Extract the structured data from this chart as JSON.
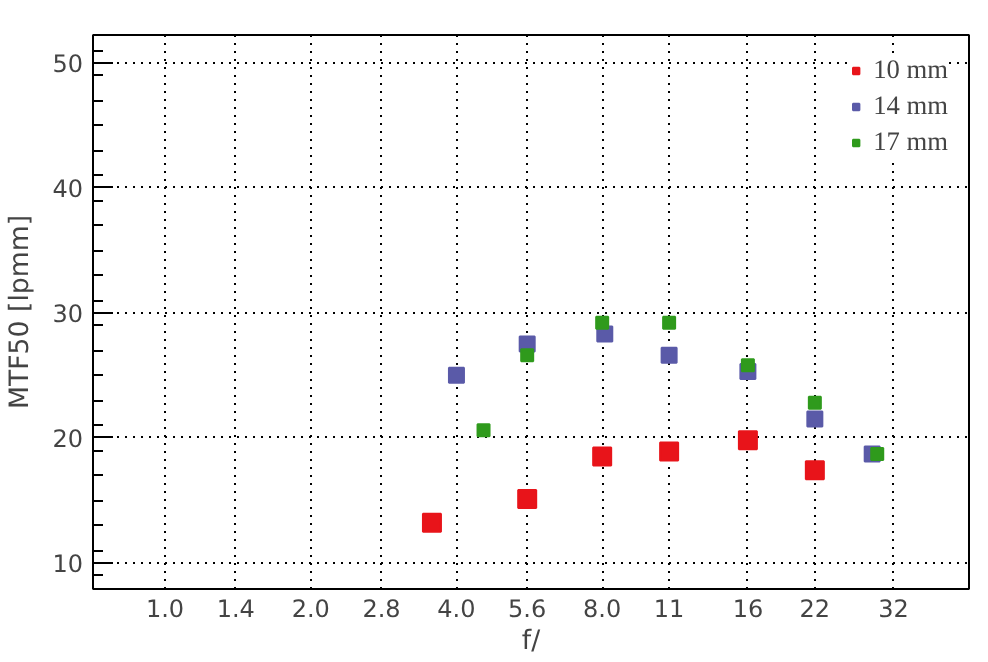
{
  "chart_data": {
    "type": "scatter",
    "xlabel": "f/",
    "ylabel": "MTF50 [lpmm]",
    "xlim": [
      0.71,
      45.8
    ],
    "ylim": [
      7.9,
      52.2
    ],
    "xticks": [
      {
        "value": 1,
        "label": "1.0"
      },
      1.4,
      {
        "value": 2,
        "label": "2.0"
      },
      2.8,
      {
        "value": 4,
        "label": "4.0"
      },
      5.6,
      {
        "value": 8,
        "label": "8.0"
      },
      11,
      16,
      22,
      32
    ],
    "yticks": [
      10,
      20,
      30,
      40,
      50
    ],
    "log": "x",
    "grid": true,
    "legend": "top right",
    "marker": "square",
    "series": [
      {
        "name": "10 mm",
        "color": "#e8141a",
        "x": [
          3.56,
          5.6,
          8,
          11,
          16,
          22
        ],
        "values": [
          13.2,
          15.1,
          18.5,
          18.9,
          19.8,
          17.4
        ]
      },
      {
        "name": "14 mm",
        "color": "#5a5aa8",
        "x": [
          4,
          5.6,
          8.1,
          11,
          16,
          22,
          28.9
        ],
        "values": [
          25.0,
          27.5,
          28.3,
          26.6,
          25.3,
          21.5,
          18.7
        ]
      },
      {
        "name": "17 mm",
        "color": "#2f9a1c",
        "x": [
          4.55,
          5.6,
          8,
          11,
          16,
          22,
          29.6
        ],
        "values": [
          20.6,
          26.6,
          29.2,
          29.2,
          25.8,
          22.8,
          18.7
        ]
      }
    ]
  }
}
